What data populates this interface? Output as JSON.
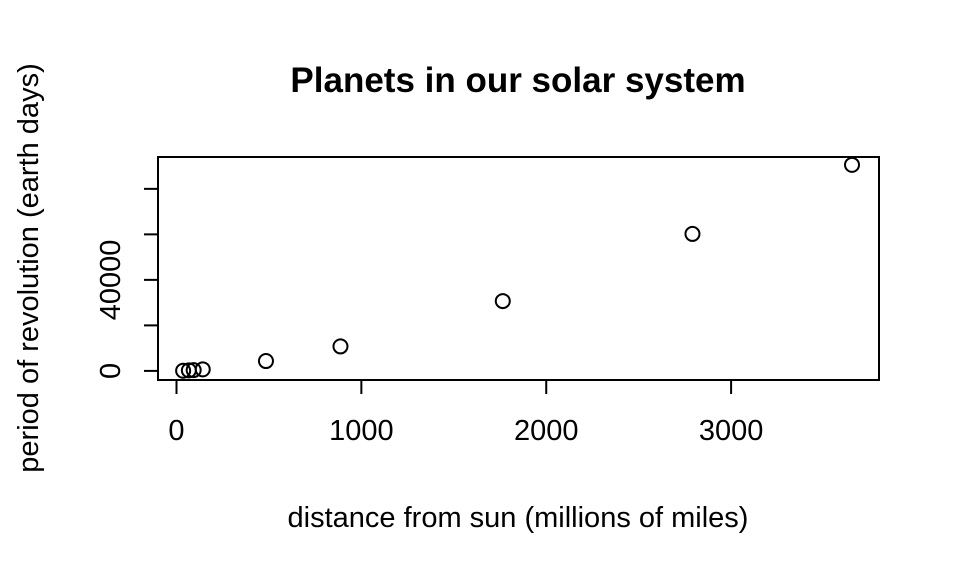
{
  "chart_data": {
    "type": "scatter",
    "title": "Planets in our solar system",
    "xlabel": "distance from sun (millions of miles)",
    "ylabel": "period of revolution (earth days)",
    "xlim": [
      -100,
      3800
    ],
    "ylim": [
      -4000,
      94000
    ],
    "x_ticks": [
      0,
      1000,
      2000,
      3000
    ],
    "y_ticks": [
      0,
      20000,
      40000,
      60000,
      80000
    ],
    "y_tick_labels": [
      "0",
      "",
      "40000",
      "",
      ""
    ],
    "grid": false,
    "legend": "none",
    "series": [
      {
        "x": [
          36,
          67,
          93,
          142,
          484,
          887,
          1765,
          2791,
          3654
        ],
        "y": [
          88,
          225,
          365,
          687,
          4333,
          10759,
          30687,
          60190,
          90560
        ]
      }
    ]
  }
}
